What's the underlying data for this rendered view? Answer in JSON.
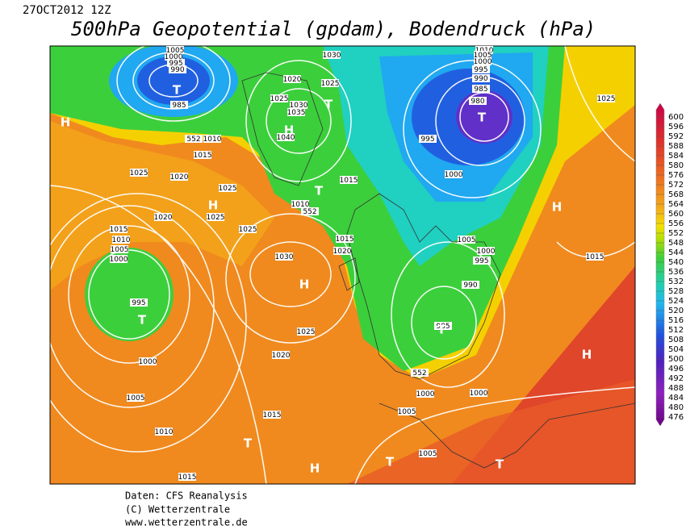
{
  "header": {
    "date": "27OCT2012 12Z",
    "title": "500hPa Geopotential (gpdam), Bodendruck (hPa)"
  },
  "map": {
    "pressure_labels": [
      "1005",
      "1000",
      "995",
      "990",
      "985",
      "1010",
      "1015",
      "552",
      "1025",
      "1020",
      "1020",
      "1025",
      "1025",
      "1030",
      "1020",
      "1025",
      "1025",
      "1030",
      "1035",
      "1040",
      "1015",
      "1010",
      "552",
      "1015",
      "1020",
      "1025",
      "1030",
      "1025",
      "1020",
      "1015",
      "1010",
      "1005",
      "1000",
      "995",
      "1000",
      "1005",
      "1010",
      "1015",
      "1015",
      "1010",
      "1005",
      "1000",
      "995",
      "990",
      "985",
      "980",
      "995",
      "1000",
      "1005",
      "1000",
      "995",
      "990",
      "985",
      "552",
      "1000",
      "1000",
      "1005",
      "1005",
      "1025",
      "1015"
    ],
    "centers": [
      "T",
      "H",
      "H",
      "T",
      "H",
      "T",
      "T",
      "H",
      "H",
      "T",
      "T",
      "H",
      "T",
      "H",
      "T",
      "T"
    ]
  },
  "colorbar": {
    "ticks": [
      600,
      596,
      592,
      588,
      584,
      580,
      576,
      572,
      568,
      564,
      560,
      556,
      552,
      548,
      544,
      540,
      536,
      532,
      528,
      524,
      520,
      516,
      512,
      508,
      504,
      500,
      496,
      492,
      488,
      484,
      480,
      476
    ]
  },
  "footer": {
    "source": "Daten: CFS Reanalysis",
    "copyright": "(C) Wetterzentrale",
    "url": "www.wetterzentrale.de"
  }
}
